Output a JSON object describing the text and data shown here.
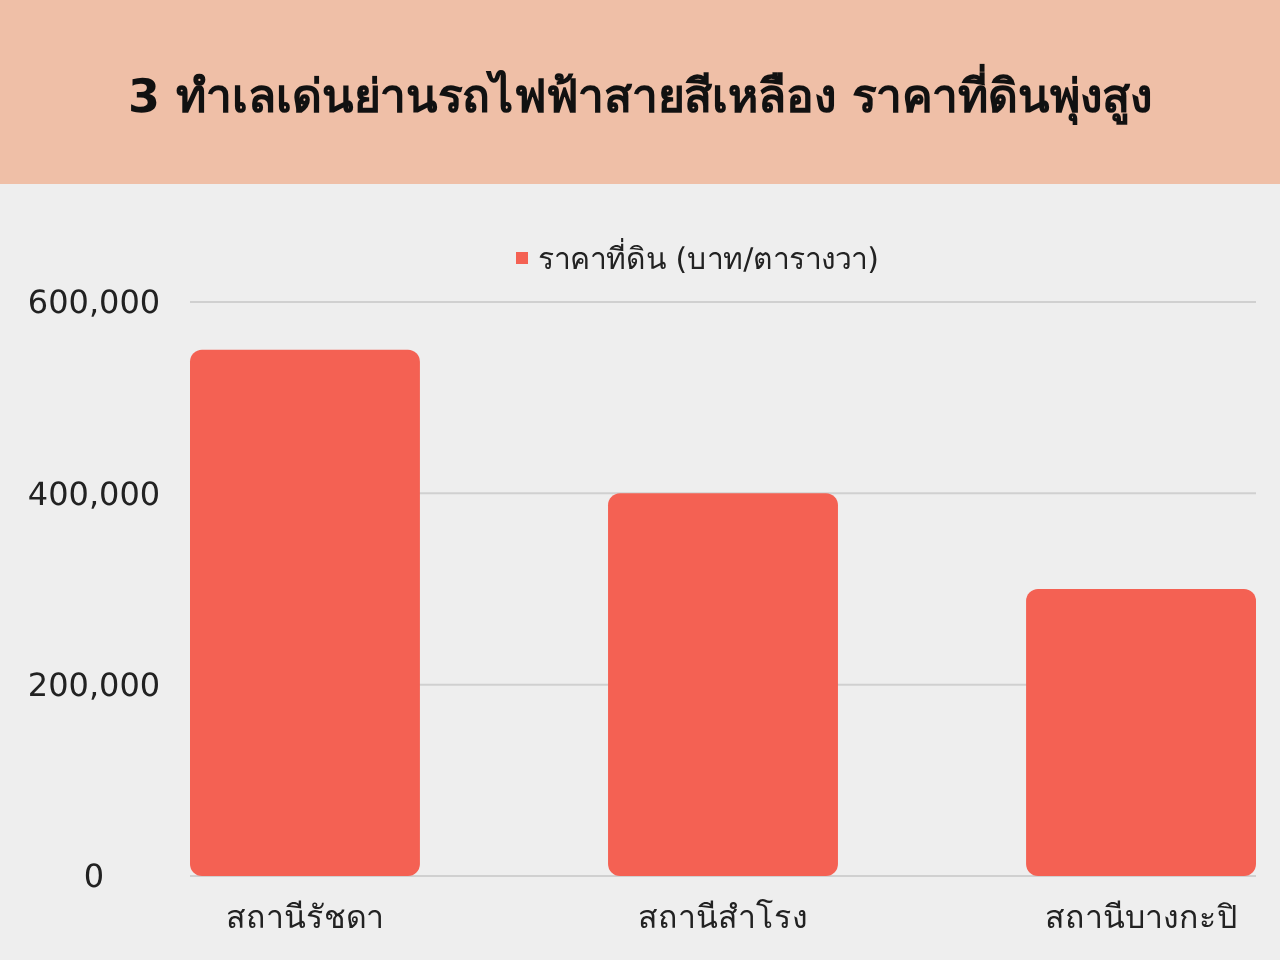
{
  "chart_data": {
    "type": "bar",
    "title": "3 ทำเลเด่นย่านรถไฟฟ้าสายสีเหลือง ราคาที่ดินพุ่งสูง",
    "categories": [
      "สถานีรัชดา",
      "สถานีสำโรง",
      "สถานีบางกะปิ"
    ],
    "series": [
      {
        "name": "ราคาที่ดิน (บาท/ตารางวา)",
        "color": "#f46153",
        "values": [
          550000,
          400000,
          300000
        ]
      }
    ],
    "ylim": [
      0,
      600000
    ],
    "yticks": [
      0,
      {
        "value": 200000,
        "label": "200,000"
      },
      {
        "value": 400000,
        "label": "400,000"
      },
      {
        "value": 600000,
        "label": "600,000"
      }
    ],
    "grid": "y",
    "legend": "top"
  }
}
